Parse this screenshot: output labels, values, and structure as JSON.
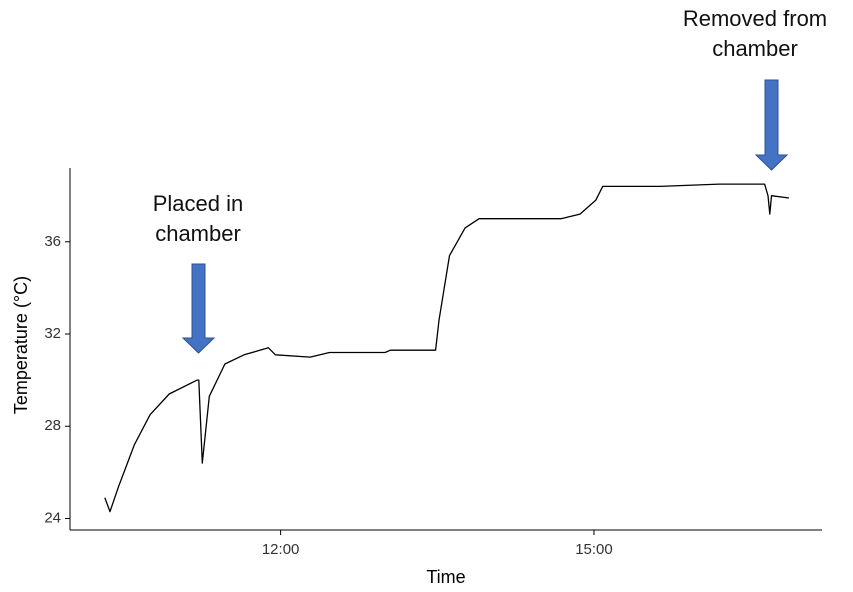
{
  "chart_data": {
    "type": "line",
    "xlabel": "Time",
    "ylabel": "Temperature (°C)",
    "x": [
      "10:19",
      "10:22",
      "10:27",
      "10:36",
      "10:45",
      "10:56",
      "11:12",
      "11:13",
      "11:15",
      "11:19",
      "11:28",
      "11:39",
      "11:53",
      "11:57",
      "12:17",
      "12:28",
      "13:00",
      "13:03",
      "13:29",
      "13:31",
      "13:37",
      "13:46",
      "13:54",
      "14:17",
      "14:41",
      "14:52",
      "15:01",
      "15:05",
      "15:38",
      "16:12",
      "16:38",
      "16:40",
      "16:41",
      "16:42",
      "16:52"
    ],
    "values": [
      24.9,
      24.3,
      25.4,
      27.2,
      28.5,
      29.4,
      30.0,
      30.0,
      26.4,
      29.3,
      30.7,
      31.1,
      31.4,
      31.1,
      31.0,
      31.2,
      31.2,
      31.3,
      31.3,
      32.6,
      35.4,
      36.6,
      37.0,
      37.0,
      37.0,
      37.2,
      37.8,
      38.4,
      38.4,
      38.5,
      38.5,
      38.0,
      37.2,
      38.0,
      37.9
    ],
    "color": "#000000",
    "xlim": [
      "09:59",
      "17:11"
    ],
    "xticks": [
      "12:00",
      "15:00"
    ],
    "ylim": [
      23.5,
      39.2
    ],
    "yticks": [
      24,
      28,
      32,
      36
    ],
    "grid": false,
    "annotations": [
      {
        "lines": [
          "Placed in",
          "chamber"
        ],
        "arrow_color": "#4472c4"
      },
      {
        "lines": [
          "Removed from",
          "chamber"
        ],
        "arrow_color": "#4472c4"
      }
    ]
  }
}
